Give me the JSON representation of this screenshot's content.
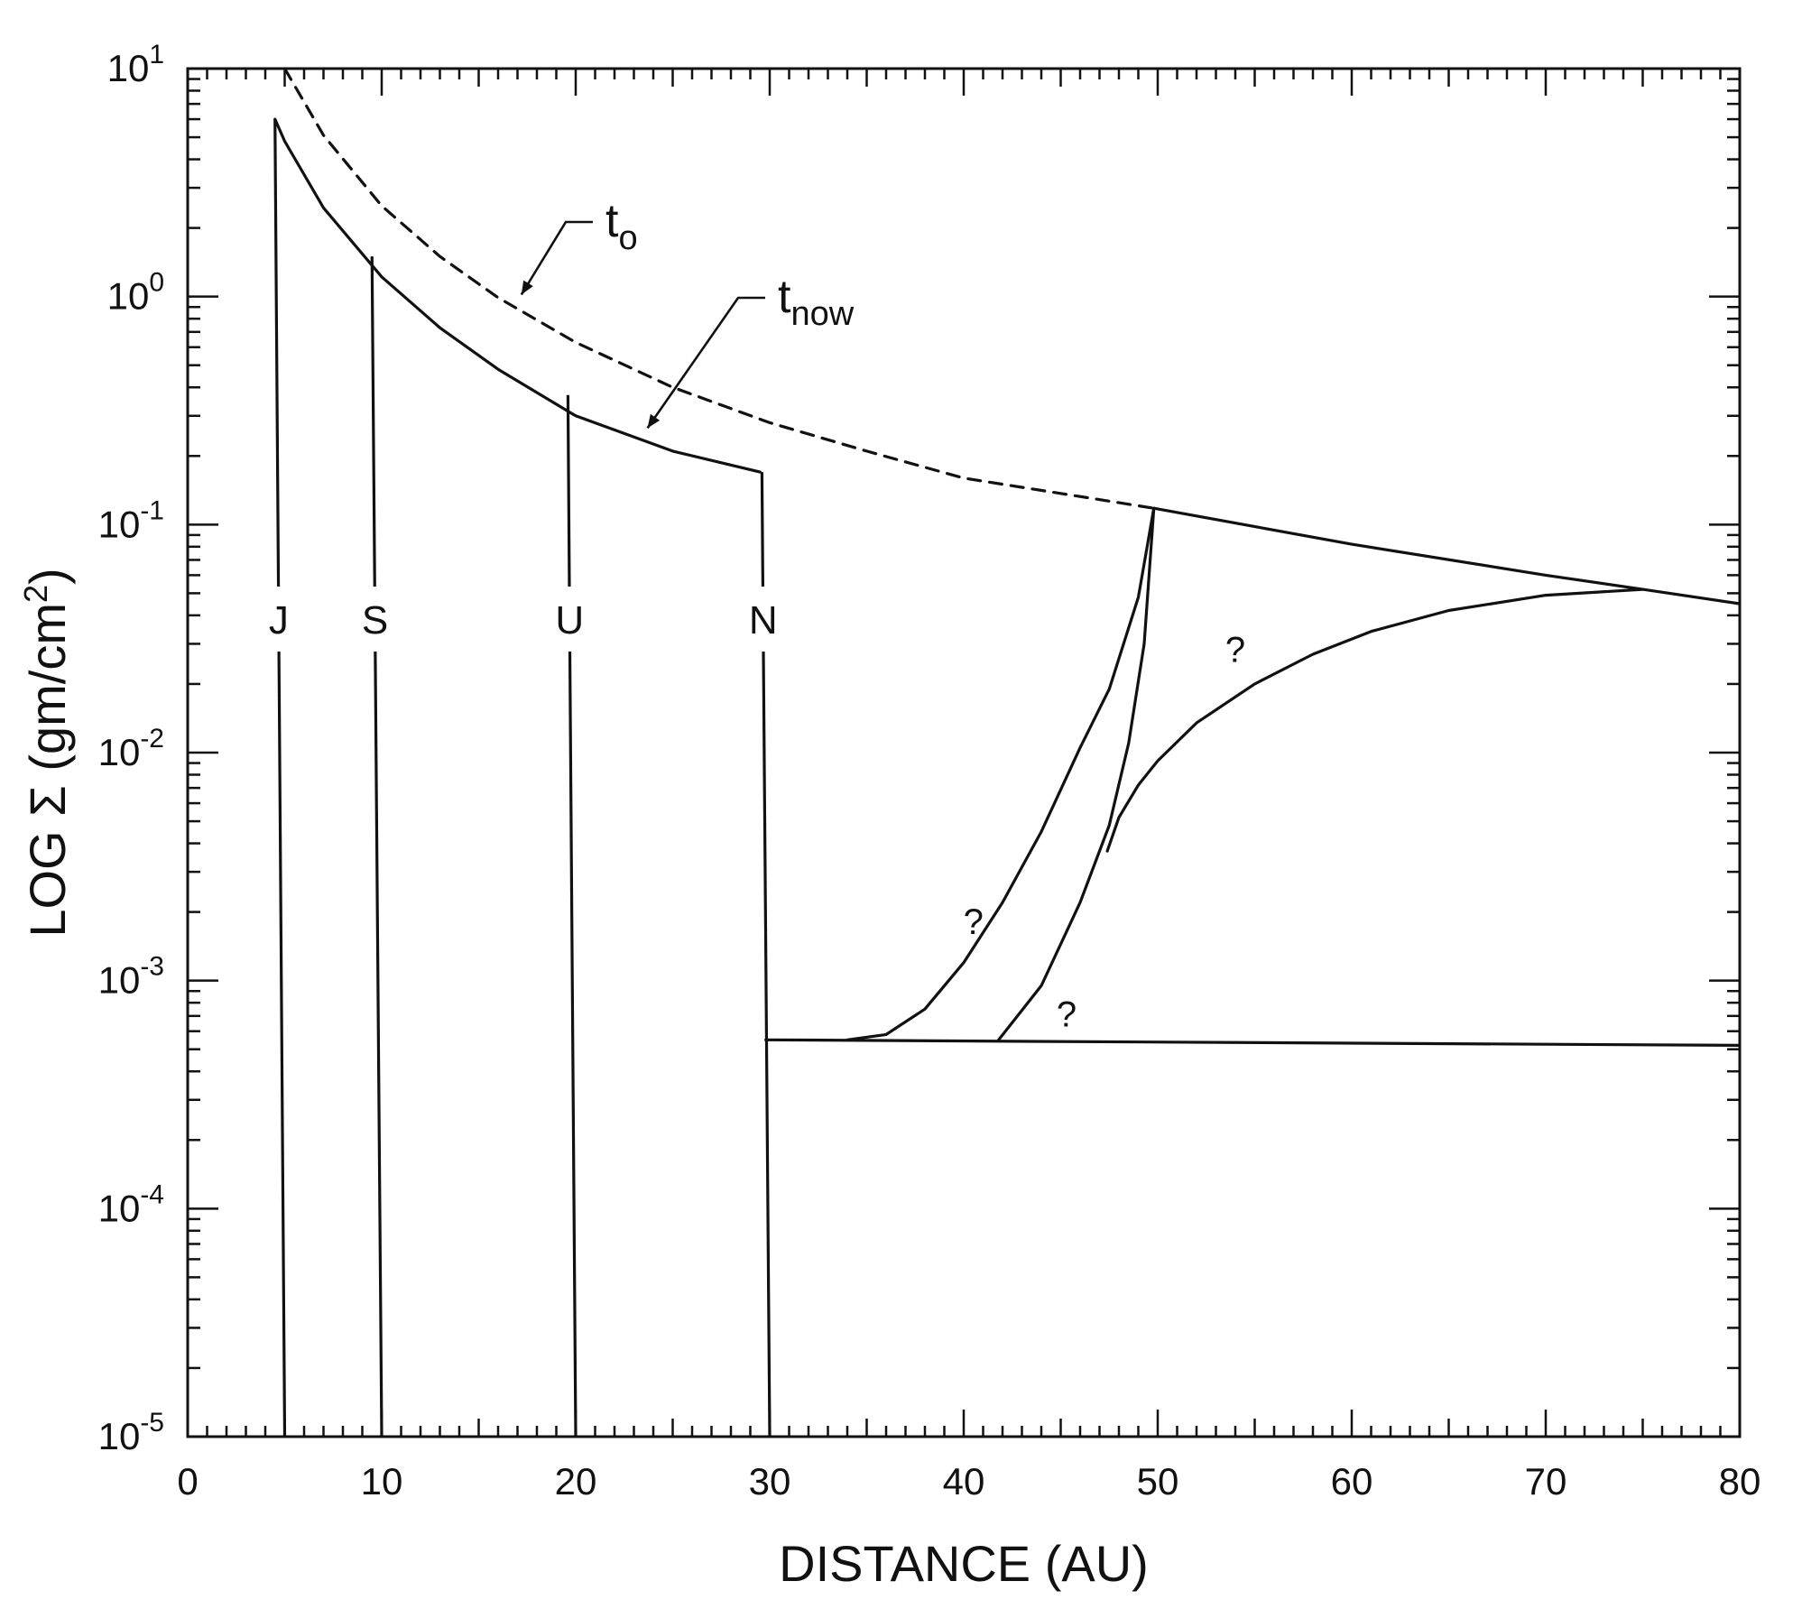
{
  "chart_data": {
    "type": "line",
    "title": "",
    "xlabel": "DISTANCE (AU)",
    "ylabel_prefix": "LOG Σ (gm/cm",
    "ylabel_sup": "2",
    "ylabel_suffix": ")",
    "xlim": [
      0,
      80
    ],
    "ylim": [
      1e-05,
      10
    ],
    "yscale": "log",
    "grid": false,
    "x_ticks": [
      0,
      10,
      20,
      30,
      40,
      50,
      60,
      70,
      80
    ],
    "x_tick_labels": [
      "0",
      "10",
      "20",
      "30",
      "40",
      "50",
      "60",
      "70",
      "80"
    ],
    "y_ticks": [
      {
        "value": 10,
        "base": "10",
        "exp": "1"
      },
      {
        "value": 1,
        "base": "10",
        "exp": "0"
      },
      {
        "value": 0.1,
        "base": "10",
        "exp": "-1"
      },
      {
        "value": 0.01,
        "base": "10",
        "exp": "-2"
      },
      {
        "value": 0.001,
        "base": "10",
        "exp": "-3"
      },
      {
        "value": 0.0001,
        "base": "10",
        "exp": "-4"
      },
      {
        "value": 1e-05,
        "base": "10",
        "exp": "-5"
      }
    ],
    "series": [
      {
        "label_main": "t",
        "label_sub": "o",
        "style": "dashed",
        "x": [
          5,
          7,
          10,
          13,
          16,
          20,
          25,
          30,
          35,
          40,
          45,
          49.8
        ],
        "y": [
          10.0,
          5.1,
          2.5,
          1.5,
          0.99,
          0.63,
          0.4,
          0.28,
          0.21,
          0.16,
          0.137,
          0.118
        ]
      },
      {
        "label_main": "t",
        "label_sub": "now",
        "style": "solid",
        "x": [
          4.5,
          5,
          7,
          10,
          13,
          16,
          20,
          25,
          29.5
        ],
        "y": [
          6.0,
          4.8,
          2.45,
          1.22,
          0.73,
          0.48,
          0.3,
          0.21,
          0.17
        ]
      },
      {
        "name": "outer-profile",
        "style": "solid",
        "x": [
          49.8,
          60,
          70,
          75,
          80
        ],
        "y": [
          0.118,
          0.082,
          0.06,
          0.052,
          0.045
        ]
      },
      {
        "name": "floor",
        "style": "solid",
        "x": [
          29.8,
          80
        ],
        "y": [
          0.00055,
          0.00052
        ]
      },
      {
        "name": "scenario-steep",
        "style": "solid",
        "x": [
          34,
          36,
          38,
          40,
          42,
          44,
          46,
          47.5,
          49,
          49.8
        ],
        "y": [
          0.00055,
          0.00058,
          0.00075,
          0.0012,
          0.0022,
          0.0045,
          0.0105,
          0.019,
          0.048,
          0.118
        ]
      },
      {
        "name": "scenario-mid",
        "style": "solid",
        "x": [
          41.8,
          44,
          46,
          47.5,
          48.5,
          49.3,
          49.8
        ],
        "y": [
          0.00055,
          0.00095,
          0.0022,
          0.0048,
          0.011,
          0.03,
          0.118
        ]
      },
      {
        "name": "scenario-slow",
        "style": "solid",
        "x": [
          47.4,
          48,
          49,
          50,
          52,
          55,
          58,
          61,
          65,
          70,
          75
        ],
        "y": [
          0.0037,
          0.0052,
          0.0072,
          0.0092,
          0.0135,
          0.02,
          0.027,
          0.034,
          0.042,
          0.049,
          0.052
        ]
      }
    ],
    "planets": [
      {
        "label": "J",
        "x_base": 5,
        "x_top": 4.5,
        "y_top": 6.0
      },
      {
        "label": "S",
        "x_base": 10,
        "x_top": 9.5,
        "y_top": 1.5
      },
      {
        "label": "U",
        "x_base": 20,
        "x_top": 19.6,
        "y_top": 0.37
      },
      {
        "label": "N",
        "x_base": 30,
        "x_top": 29.6,
        "y_top": 0.17
      }
    ],
    "question_marks": [
      {
        "text": "?",
        "x": 40.5,
        "y": 0.0016
      },
      {
        "text": "?",
        "x": 45.3,
        "y": 0.00063
      },
      {
        "text": "?",
        "x": 54.0,
        "y": 0.025
      }
    ]
  }
}
